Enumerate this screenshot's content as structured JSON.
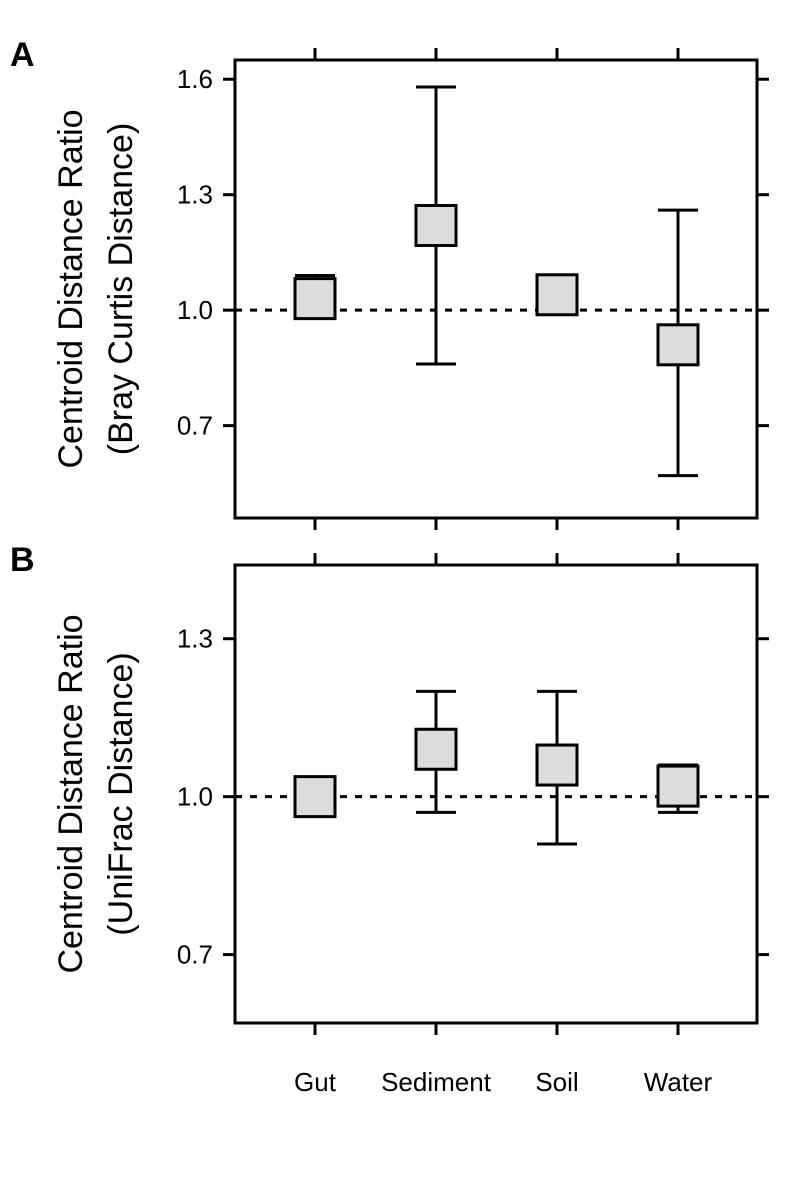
{
  "chart_data": [
    {
      "panel": "A",
      "type": "scatter",
      "categories": [
        "Gut",
        "Sediment",
        "Soil",
        "Water"
      ],
      "show_category_labels": false,
      "ylabel": [
        "Centroid Distance Ratio",
        "(Bray Curtis Distance)"
      ],
      "yticks": [
        0.7,
        1.0,
        1.3,
        1.6
      ],
      "ytick_labels": [
        "0.7",
        "1.0",
        "1.3",
        "1.6"
      ],
      "ylim": [
        0.46,
        1.65
      ],
      "reference_line": 1.0,
      "points": [
        {
          "category": "Gut",
          "value": 1.03,
          "lower": 0.98,
          "upper": 1.09
        },
        {
          "category": "Sediment",
          "value": 1.22,
          "lower": 0.86,
          "upper": 1.58
        },
        {
          "category": "Soil",
          "value": 1.04,
          "lower": 1.04,
          "upper": 1.04
        },
        {
          "category": "Water",
          "value": 0.91,
          "lower": 0.57,
          "upper": 1.26
        }
      ],
      "marker_color": "#dcdcdc",
      "grid": false
    },
    {
      "panel": "B",
      "type": "scatter",
      "categories": [
        "Gut",
        "Sediment",
        "Soil",
        "Water"
      ],
      "show_category_labels": true,
      "ylabel": [
        "Centroid Distance Ratio",
        "(UniFrac Distance)"
      ],
      "yticks": [
        0.7,
        1.0,
        1.3
      ],
      "ytick_labels": [
        "0.7",
        "1.0",
        "1.3"
      ],
      "ylim": [
        0.57,
        1.44
      ],
      "reference_line": 1.0,
      "points": [
        {
          "category": "Gut",
          "value": 1.0,
          "lower": 1.0,
          "upper": 1.0
        },
        {
          "category": "Sediment",
          "value": 1.09,
          "lower": 0.97,
          "upper": 1.2
        },
        {
          "category": "Soil",
          "value": 1.06,
          "lower": 0.91,
          "upper": 1.2
        },
        {
          "category": "Water",
          "value": 1.02,
          "lower": 0.97,
          "upper": 1.06
        }
      ],
      "marker_color": "#dcdcdc",
      "grid": false
    }
  ]
}
